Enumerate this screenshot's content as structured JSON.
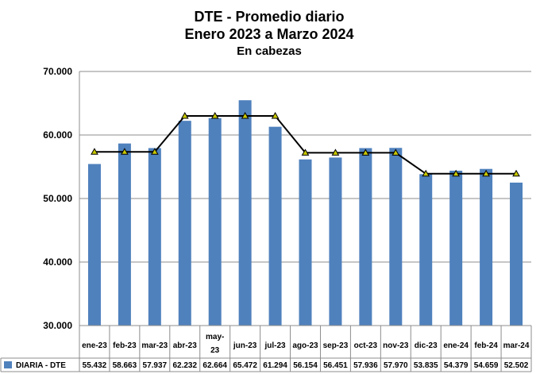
{
  "chart_data": {
    "type": "bar",
    "title": "DTE - Promedio diario",
    "subtitle": "Enero 2023 a Marzo 2024",
    "unit_label": "En cabezas",
    "categories": [
      "ene-23",
      "feb-23",
      "mar-23",
      "abr-23",
      "may-23",
      "jun-23",
      "jul-23",
      "ago-23",
      "sep-23",
      "oct-23",
      "nov-23",
      "dic-23",
      "ene-24",
      "feb-24",
      "mar-24"
    ],
    "series": [
      {
        "name": "DIARIA - DTE",
        "type": "bar",
        "color": "#4F81BD",
        "values": [
          55432,
          58663,
          57937,
          62232,
          62664,
          65472,
          61294,
          56154,
          56451,
          57936,
          57970,
          53835,
          54379,
          54659,
          52502
        ],
        "labels": [
          "55.432",
          "58.663",
          "57.937",
          "62.232",
          "62.664",
          "65.472",
          "61.294",
          "56.154",
          "56.451",
          "57.936",
          "57.970",
          "53.835",
          "54.379",
          "54.659",
          "52.502"
        ]
      },
      {
        "type": "line",
        "color": "#000000",
        "marker_color": "#C8C800",
        "values": [
          57344,
          57344,
          57344,
          63000,
          63000,
          63000,
          63000,
          57200,
          57200,
          57200,
          57200,
          53900,
          53900,
          53900,
          53900
        ]
      }
    ],
    "ylim": [
      30000,
      70000
    ],
    "y_ticks": [
      30000,
      40000,
      50000,
      60000,
      70000
    ],
    "y_tick_labels": [
      "30.000",
      "40.000",
      "50.000",
      "60.000",
      "70.000"
    ],
    "grid": true,
    "legend": "data-table-bottom"
  }
}
